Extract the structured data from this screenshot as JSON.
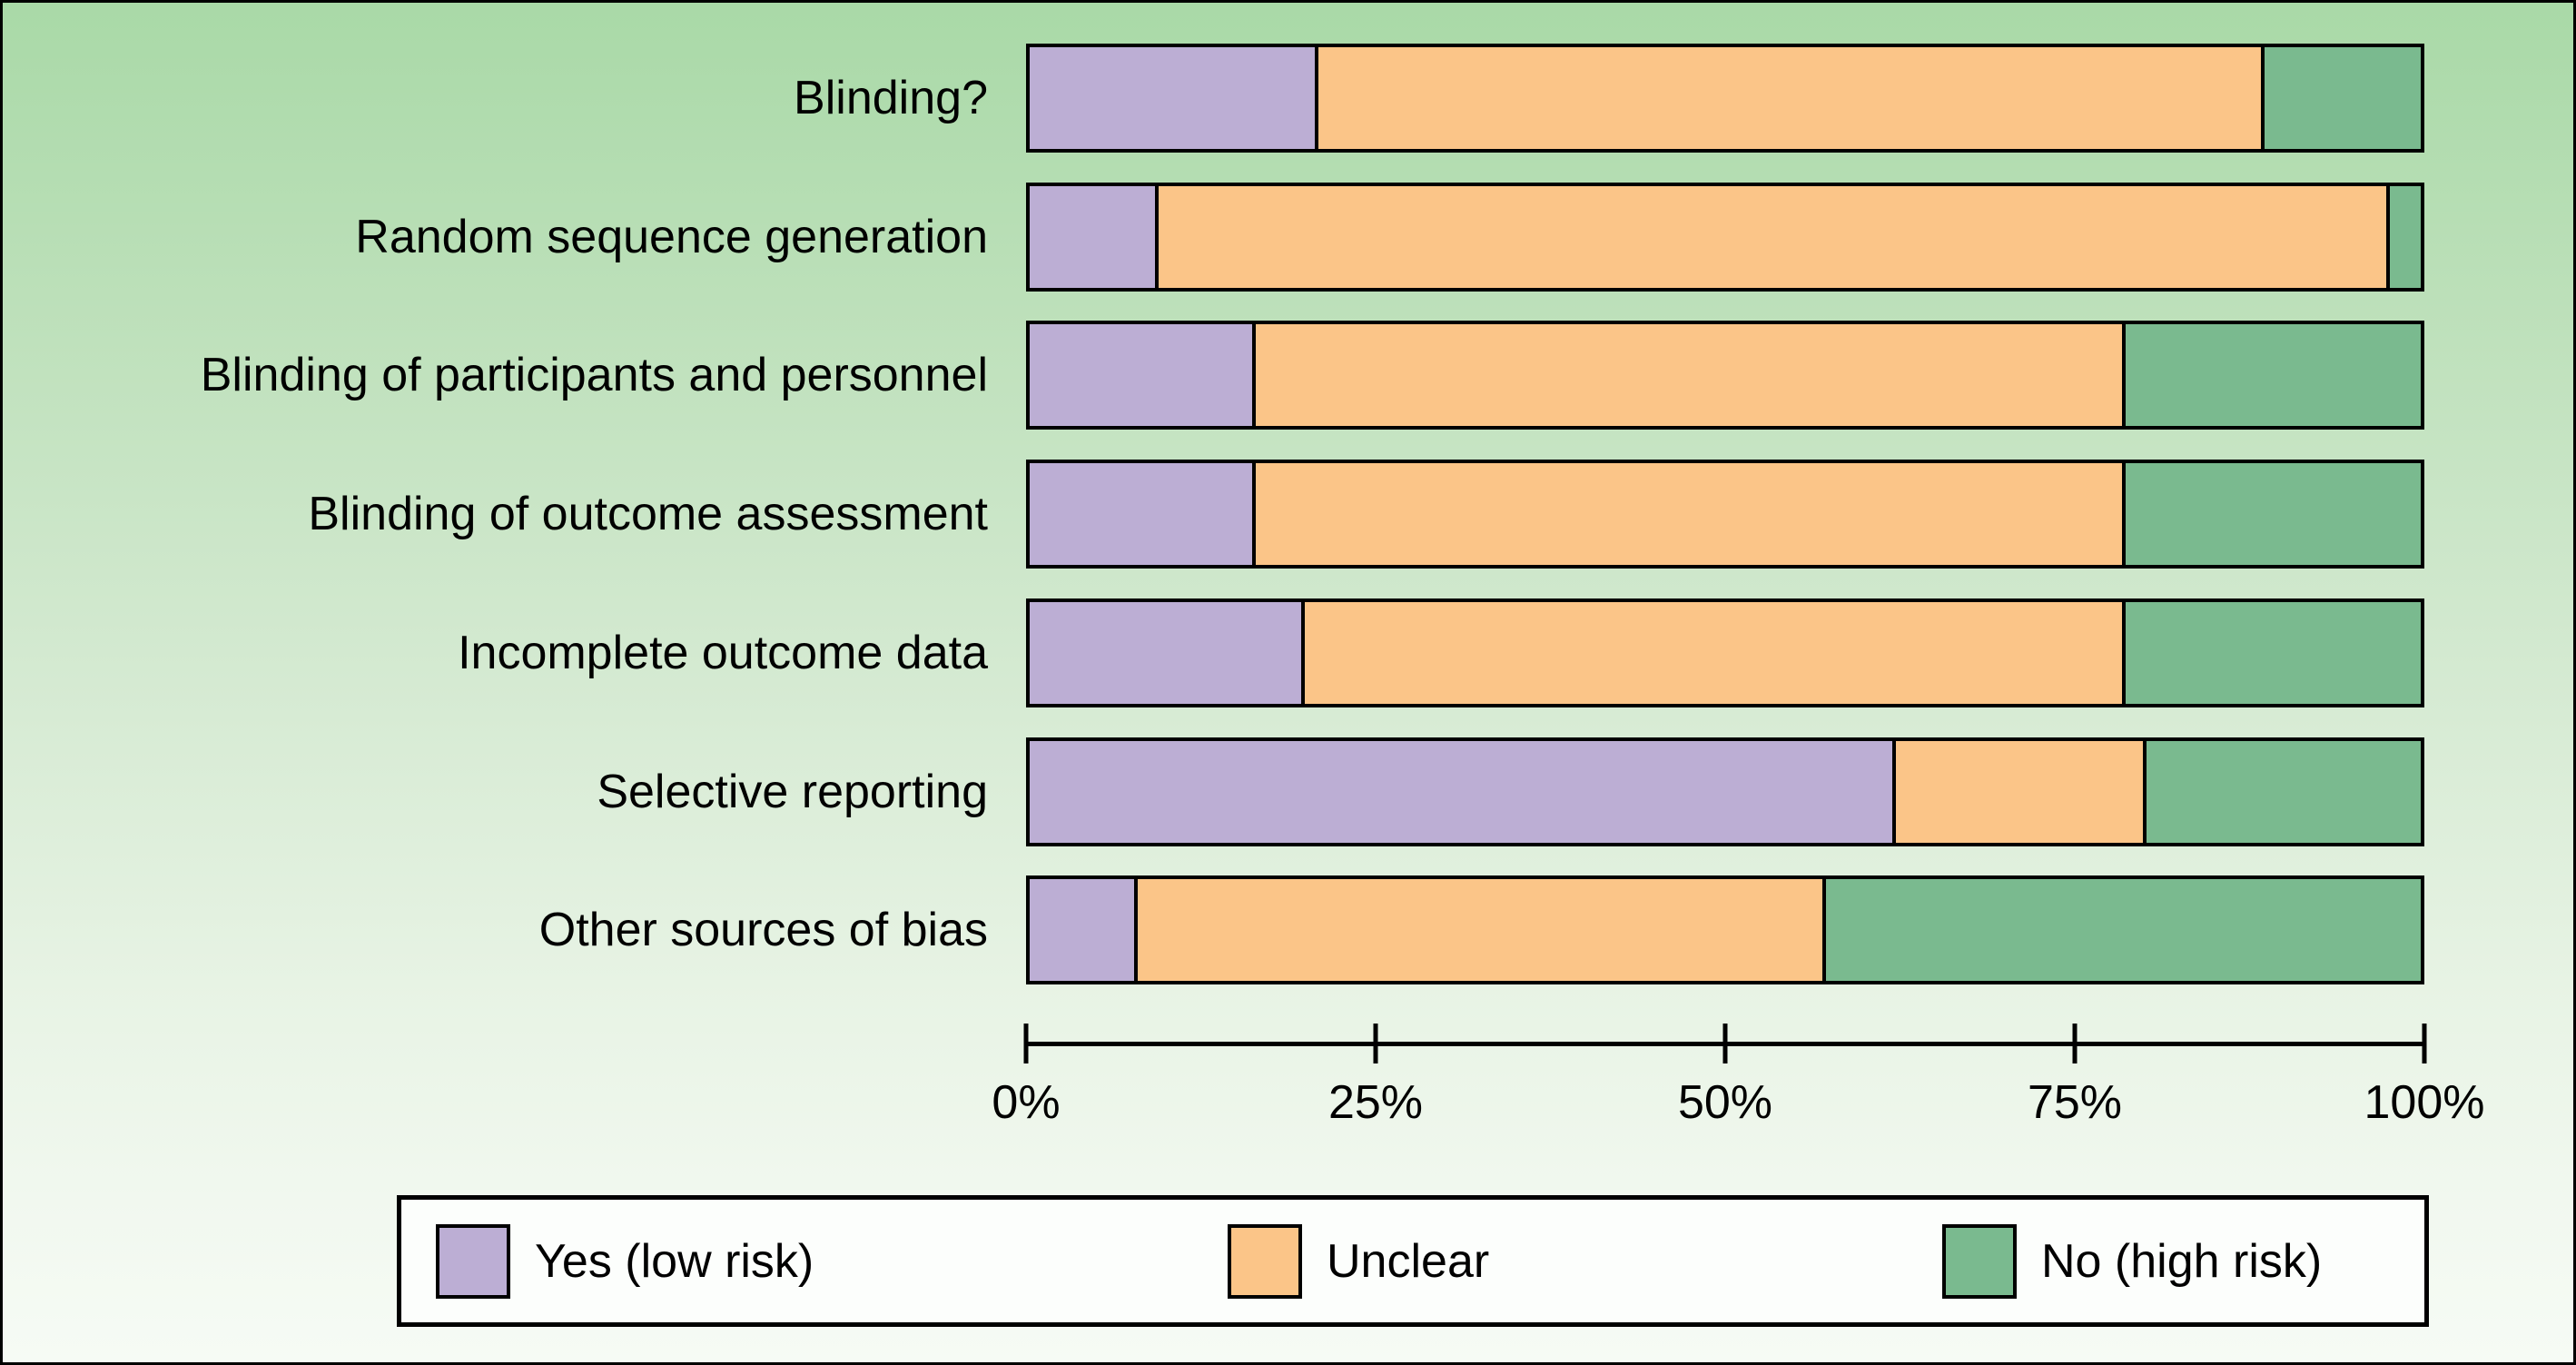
{
  "chart_data": {
    "type": "bar",
    "orientation": "horizontal",
    "stacked": true,
    "unit": "percent",
    "title": "",
    "xlabel": "",
    "ylabel": "",
    "categories": [
      "Blinding?",
      "Random sequence generation",
      "Blinding of participants and personnel",
      "Blinding of outcome assessment",
      "Incomplete outcome data",
      "Selective reporting",
      "Other sources of bias"
    ],
    "series": [
      {
        "name": "Yes (low risk)",
        "color": "#bcaed4",
        "values": [
          20.5,
          9,
          16,
          16,
          19.5,
          62,
          7.5
        ]
      },
      {
        "name": "Unclear",
        "color": "#fbc588",
        "values": [
          68,
          88.5,
          62.5,
          62.5,
          59,
          18,
          49.5
        ]
      },
      {
        "name": "No (high risk)",
        "color": "#7aba8f",
        "values": [
          11.5,
          2.5,
          21.5,
          21.5,
          21.5,
          20,
          43
        ]
      }
    ],
    "x_ticks": [
      "0%",
      "25%",
      "50%",
      "75%",
      "100%"
    ],
    "x_tick_values": [
      0,
      25,
      50,
      75,
      100
    ],
    "xlim": [
      0,
      100
    ],
    "grid": false,
    "legend_position": "bottom"
  },
  "style": {
    "background_top": "#a9d9a7",
    "background_bottom": "#f6fbf5",
    "bar_border_color": "#000000",
    "text_color": "#000000",
    "legend_background": "#fcfefc"
  }
}
